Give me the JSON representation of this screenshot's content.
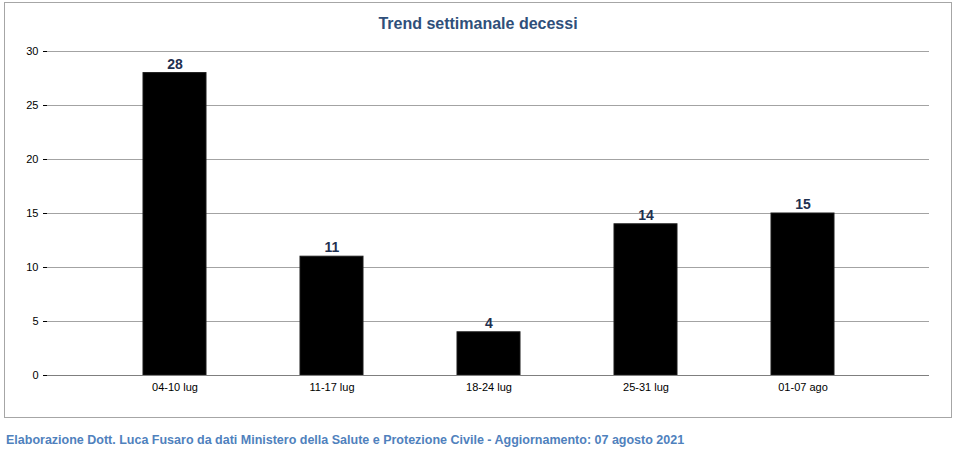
{
  "chart_data": {
    "type": "bar",
    "title": "Trend settimanale decessi",
    "caption": "Elaborazione Dott. Luca Fusaro da dati Ministero della Salute e Protezione Civile - Aggiornamento: 07 agosto 2021",
    "categories": [
      "04-10 lug",
      "11-17 lug",
      "18-24 lug",
      "25-31 lug",
      "01-07 ago"
    ],
    "values": [
      28,
      11,
      4,
      14,
      15
    ],
    "color": "#000000",
    "ylim": [
      0,
      30
    ],
    "yticks": [
      0,
      5,
      10,
      15,
      20,
      25,
      30
    ],
    "grid": true,
    "data_labels": true
  }
}
